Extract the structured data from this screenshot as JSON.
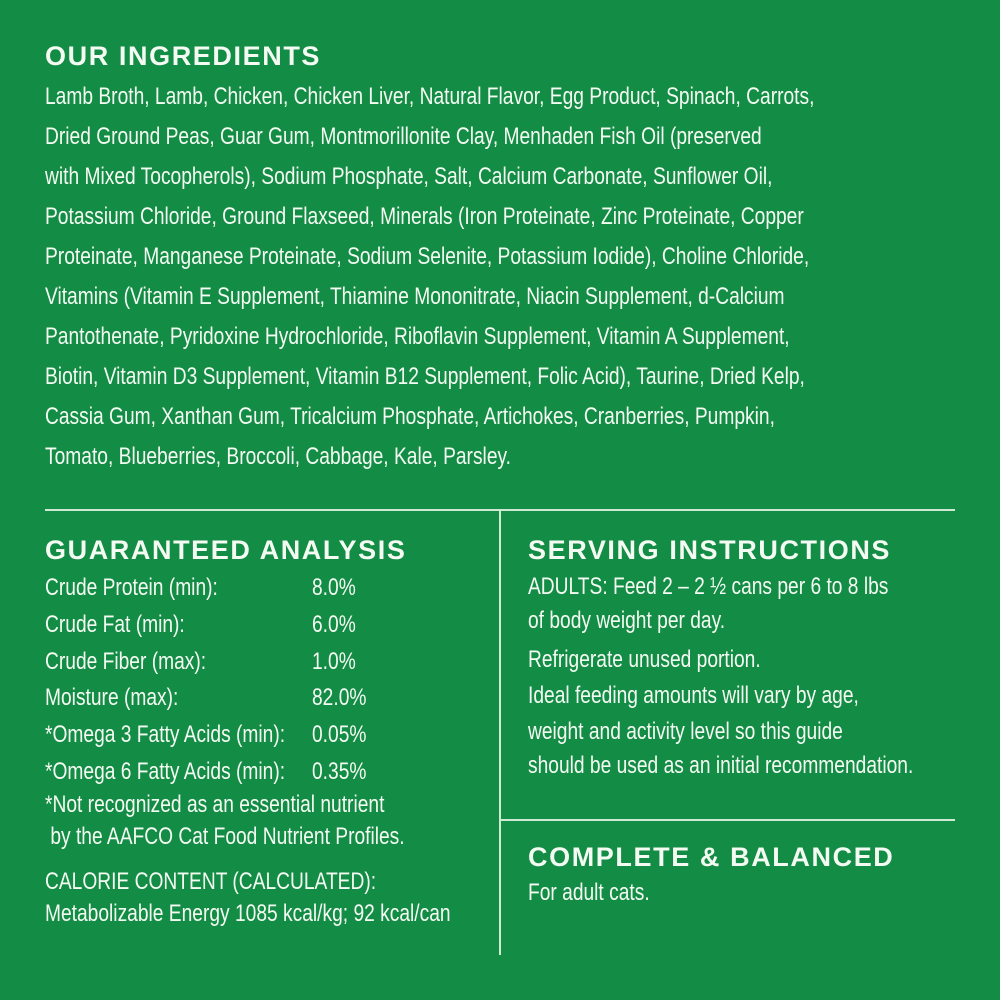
{
  "background_color": "#138c45",
  "ingredients": {
    "heading": "OUR INGREDIENTS",
    "lines": [
      "Lamb Broth, Lamb, Chicken, Chicken Liver, Natural Flavor, Egg Product, Spinach, Carrots,",
      "Dried Ground Peas, Guar Gum, Montmorillonite Clay, Menhaden Fish Oil (preserved",
      "with Mixed Tocopherols), Sodium Phosphate, Salt, Calcium Carbonate, Sunflower Oil,",
      "Potassium Chloride, Ground Flaxseed, Minerals (Iron Proteinate, Zinc Proteinate, Copper",
      "Proteinate, Manganese Proteinate, Sodium Selenite, Potassium Iodide), Choline Chloride,",
      "Vitamins (Vitamin E Supplement, Thiamine Mononitrate, Niacin Supplement, d-Calcium",
      "Pantothenate, Pyridoxine Hydrochloride, Riboflavin Supplement, Vitamin A Supplement,",
      "Biotin, Vitamin D3 Supplement, Vitamin B12 Supplement, Folic Acid), Taurine, Dried Kelp,",
      "Cassia Gum, Xanthan Gum, Tricalcium Phosphate, Artichokes, Cranberries, Pumpkin,",
      "Tomato, Blueberries, Broccoli, Cabbage, Kale, Parsley."
    ]
  },
  "analysis": {
    "heading": "GUARANTEED ANALYSIS",
    "rows": [
      {
        "label": "Crude Protein (min):",
        "value": "8.0%"
      },
      {
        "label": "Crude Fat (min):",
        "value": "6.0%"
      },
      {
        "label": "Crude Fiber (max):",
        "value": "1.0%"
      },
      {
        "label": "Moisture (max):",
        "value": "82.0%"
      },
      {
        "label": "*Omega 3 Fatty Acids (min):",
        "value": "0.05%"
      },
      {
        "label": "*Omega 6 Fatty Acids (min):",
        "value": "0.35%"
      }
    ],
    "footnote": [
      "*Not recognized as an essential nutrient",
      " by the AAFCO Cat Food Nutrient Profiles."
    ],
    "calorie": [
      "CALORIE CONTENT (CALCULATED):",
      "Metabolizable Energy 1085 kcal/kg; 92 kcal/can"
    ]
  },
  "serving": {
    "heading": "SERVING INSTRUCTIONS",
    "lines": [
      "ADULTS: Feed 2 – 2 ½ cans per 6 to 8 lbs",
      "of body weight per day.",
      "Refrigerate unused portion.",
      "Ideal feeding amounts will vary by age,",
      "weight and activity level so this guide",
      "should be used as an initial recommendation."
    ]
  },
  "complete": {
    "heading": "COMPLETE & BALANCED",
    "text": "For adult cats."
  }
}
